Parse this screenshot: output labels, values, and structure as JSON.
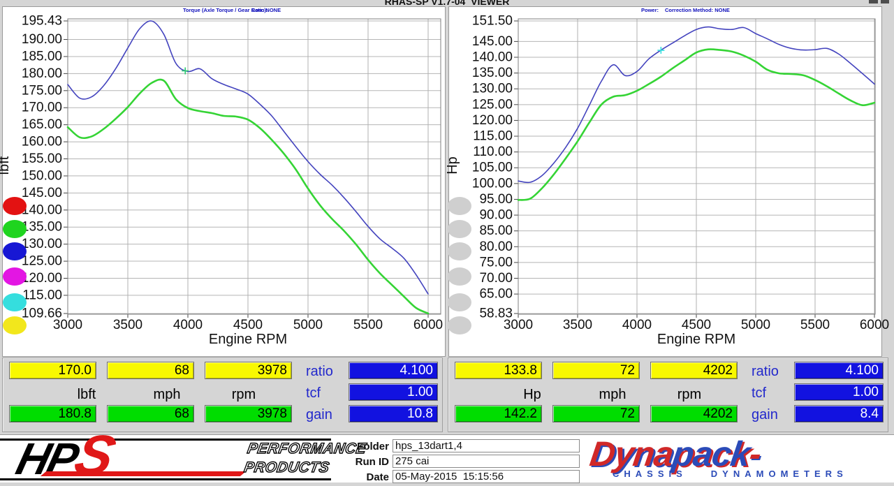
{
  "window": {
    "title": "RHAS-SP V1.7-04  VIEWER"
  },
  "chart_data": [
    {
      "type": "line",
      "name": "torque-vs-rpm",
      "title_left": "Torque (Axle Torque / Gear Ratio):",
      "title_right": "Corr: NONE",
      "xlabel": "Engine RPM",
      "ylabel": "lbft",
      "xlim": [
        3000,
        6000
      ],
      "ylim": [
        109.66,
        195.43
      ],
      "grid": true,
      "legend_position": "none",
      "x_ticks": [
        "3000",
        "3500",
        "4000",
        "4500",
        "5000",
        "5500",
        "6000"
      ],
      "y_ticks": [
        "195.43",
        "190.00",
        "185.00",
        "180.00",
        "175.00",
        "170.00",
        "165.00",
        "160.00",
        "155.00",
        "150.00",
        "145.00",
        "140.00",
        "135.00",
        "130.00",
        "125.00",
        "120.00",
        "115.00",
        "109.66"
      ],
      "x": [
        3000,
        3100,
        3200,
        3300,
        3400,
        3500,
        3600,
        3700,
        3800,
        3900,
        4000,
        4100,
        4200,
        4300,
        4400,
        4500,
        4600,
        4700,
        4800,
        4900,
        5000,
        5100,
        5200,
        5300,
        5400,
        5500,
        5600,
        5700,
        5800,
        5900,
        6000
      ],
      "series": [
        {
          "name": "baseline-run-green",
          "color": "#35d435",
          "width": 2.6,
          "values": [
            164.3,
            161.3,
            161.6,
            163.8,
            166.8,
            170.2,
            174.2,
            177.3,
            177.9,
            172.5,
            169.9,
            169.0,
            168.4,
            167.6,
            167.4,
            166.5,
            164.0,
            160.5,
            156.5,
            151.8,
            146.3,
            141.4,
            137.4,
            133.9,
            129.9,
            125.4,
            121.4,
            118.0,
            114.6,
            111.3,
            109.7
          ]
        },
        {
          "name": "modified-run-blue",
          "color": "#4343be",
          "width": 1.6,
          "values": [
            176.8,
            172.8,
            173.2,
            176.5,
            181.5,
            187.5,
            193.2,
            195.4,
            191.5,
            183.0,
            180.6,
            181.4,
            178.5,
            176.8,
            175.5,
            174.0,
            171.0,
            167.5,
            163.0,
            158.5,
            154.2,
            150.5,
            147.3,
            143.6,
            139.5,
            135.2,
            131.5,
            128.8,
            125.8,
            121.0,
            115.4
          ]
        }
      ],
      "cursor": {
        "x": 3978,
        "y": 180.8,
        "color": "#2ecc71"
      },
      "legend_dots": [
        "#e31212",
        "#1fd41f",
        "#1717d4",
        "#e316e3",
        "#35dede",
        "#f2e71c"
      ]
    },
    {
      "type": "line",
      "name": "power-vs-rpm",
      "title_left": "Power:",
      "title_right": "Correction Method: NONE",
      "xlabel": "Engine RPM",
      "ylabel": "Hp",
      "xlim": [
        3000,
        6000
      ],
      "ylim": [
        58.83,
        151.5
      ],
      "grid": true,
      "legend_position": "none",
      "x_ticks": [
        "3000",
        "3500",
        "4000",
        "4500",
        "5000",
        "5500",
        "6000"
      ],
      "y_ticks": [
        "151.50",
        "145.00",
        "140.00",
        "135.00",
        "130.00",
        "125.00",
        "120.00",
        "115.00",
        "110.00",
        "105.00",
        "100.00",
        "95.00",
        "90.00",
        "85.00",
        "80.00",
        "75.00",
        "70.00",
        "65.00",
        "58.83"
      ],
      "x": [
        3000,
        3100,
        3200,
        3300,
        3400,
        3500,
        3600,
        3700,
        3800,
        3900,
        4000,
        4100,
        4200,
        4300,
        4400,
        4500,
        4600,
        4700,
        4800,
        4900,
        5000,
        5100,
        5200,
        5300,
        5400,
        5500,
        5600,
        5700,
        5800,
        5900,
        6000
      ],
      "series": [
        {
          "name": "baseline-run-green",
          "color": "#35d435",
          "width": 2.6,
          "values": [
            94.8,
            95.2,
            98.5,
            102.9,
            108.0,
            113.4,
            119.4,
            125.0,
            127.5,
            128.0,
            129.4,
            131.5,
            133.8,
            136.5,
            139.0,
            141.5,
            142.5,
            142.3,
            141.8,
            140.5,
            138.6,
            136.0,
            134.9,
            134.7,
            134.3,
            132.8,
            130.8,
            128.5,
            126.3,
            124.8,
            125.6
          ]
        },
        {
          "name": "modified-run-blue",
          "color": "#4343be",
          "width": 1.6,
          "values": [
            100.8,
            100.4,
            102.5,
            106.5,
            111.5,
            117.5,
            124.9,
            132.4,
            137.6,
            134.2,
            135.5,
            139.5,
            142.2,
            144.5,
            146.8,
            148.8,
            149.6,
            149.0,
            148.8,
            149.4,
            147.5,
            145.8,
            144.0,
            142.8,
            142.3,
            142.4,
            142.8,
            141.0,
            138.0,
            134.8,
            131.5
          ]
        }
      ],
      "cursor": {
        "x": 4202,
        "y": 142.2,
        "color": "#35dede"
      },
      "legend_dots": [
        "#cfcfcf",
        "#cfcfcf",
        "#cfcfcf",
        "#cfcfcf",
        "#cfcfcf",
        "#cfcfcf"
      ]
    }
  ],
  "left_table": {
    "top_values": [
      "170.0",
      "68",
      "3978"
    ],
    "units": [
      "lbft",
      "mph",
      "rpm"
    ],
    "bottom_values": [
      "180.8",
      "68",
      "3978"
    ],
    "params": [
      {
        "label": "ratio",
        "value": "4.100"
      },
      {
        "label": "tcf",
        "value": "1.00"
      },
      {
        "label": "gain",
        "value": "10.8"
      }
    ]
  },
  "right_table": {
    "top_values": [
      "133.8",
      "72",
      "4202"
    ],
    "units": [
      "Hp",
      "mph",
      "rpm"
    ],
    "bottom_values": [
      "142.2",
      "72",
      "4202"
    ],
    "params": [
      {
        "label": "ratio",
        "value": "4.100"
      },
      {
        "label": "tcf",
        "value": "1.00"
      },
      {
        "label": "gain",
        "value": "8.4"
      }
    ]
  },
  "footer": {
    "hps": {
      "letters1": "HP",
      "letters2": "S",
      "line1": "PERFORMANCE",
      "line2": "PRODUCTS"
    },
    "fields": [
      {
        "label": "Folder",
        "value": "hps_13dart1,4"
      },
      {
        "label": "Run ID",
        "value": "275 cai"
      },
      {
        "label": "Date",
        "value": "05-May-2015  15:15:56"
      }
    ],
    "dynapack": {
      "word1": "Dyna",
      "word2": "pack",
      "dash": "-",
      "sub1": "CHASSIS",
      "sub2": "DYNAMOMETERS"
    }
  }
}
